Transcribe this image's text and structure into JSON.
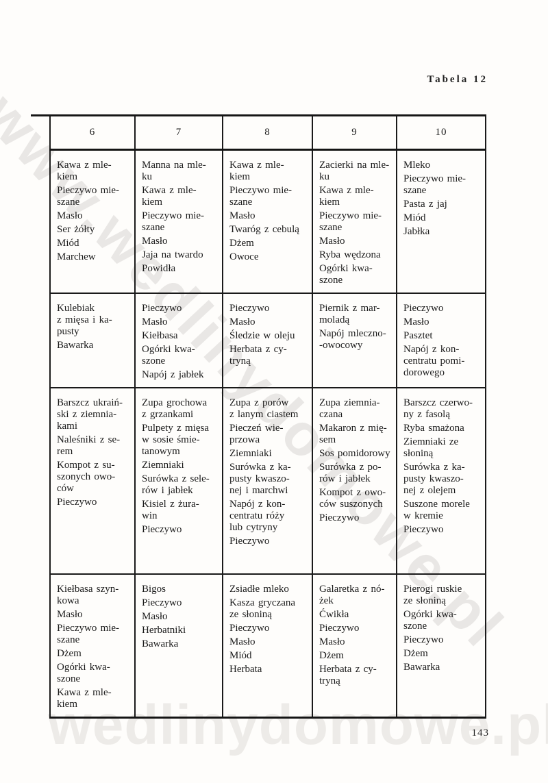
{
  "page": {
    "title": "Tabela 12",
    "number": "143"
  },
  "watermarks": {
    "diagonal": "www.wedlinydomowe.pl",
    "bottom": "wedlinydomowe.pl"
  },
  "table": {
    "headers": [
      "6",
      "7",
      "8",
      "9",
      "10"
    ],
    "rows": [
      [
        [
          "Kawa z mle-\nkiem",
          "Pieczywo mie-\nszane",
          "Masło",
          "Ser żółty",
          "Miód",
          "Marchew"
        ],
        [
          "Manna na mle-\nku",
          "Kawa z mle-\nkiem",
          "Pieczywo mie-\nszane",
          "Masło",
          "Jaja na twardo",
          "Powidła"
        ],
        [
          "Kawa z mle-\nkiem",
          "Pieczywo mie-\nszane",
          "Masło",
          "Twaróg z cebulą",
          "Dżem",
          "Owoce"
        ],
        [
          "Zacierki na mle-\nku",
          "Kawa z mle-\nkiem",
          "Pieczywo mie-\nszane",
          "Masło",
          "Ryba wędzona",
          "Ogórki kwa-\nszone"
        ],
        [
          "Mleko",
          "Pieczywo mie-\nszane",
          "Pasta z jaj",
          "Miód",
          "Jabłka"
        ]
      ],
      [
        [
          "Kulebiak\nz mięsa i ka-\npusty",
          "Bawarka"
        ],
        [
          "Pieczywo",
          "Masło",
          "Kiełbasa",
          "Ogórki kwa-\nszone",
          "Napój z jabłek"
        ],
        [
          "Pieczywo",
          "Masło",
          "Śledzie w oleju",
          "Herbata z cy-\ntryną"
        ],
        [
          "Piernik z mar-\nmoladą",
          "Napój mleczno-\n-owocowy"
        ],
        [
          "Pieczywo",
          "Masło",
          "Pasztet",
          "Napój z kon-\ncentratu pomi-\ndorowego"
        ]
      ],
      [
        [
          "Barszcz ukraiń-\nski z ziemnia-\nkami",
          "Naleśniki z se-\nrem",
          "Kompot z su-\nszonych owo-\nców",
          "Pieczywo"
        ],
        [
          "Zupa grochowa\nz grzankami",
          "Pulpety z mięsa\nw sosie śmie-\ntanowym",
          "Ziemniaki",
          "Surówka z sele-\nrów i jabłek",
          "Kisiel z żura-\nwin",
          "Pieczywo"
        ],
        [
          "Zupa z porów\nz lanym ciastem",
          "Pieczeń wie-\nprzowa",
          "Ziemniaki",
          "Surówka z ka-\npusty kwaszo-\nnej i marchwi",
          "Napój z kon-\ncentratu róży\nlub cytryny",
          "Pieczywo"
        ],
        [
          "Zupa ziemnia-\nczana",
          "Makaron z mię-\nsem",
          "Sos pomidorowy",
          "Surówka z po-\nrów i jabłek",
          "Kompot z owo-\nców suszonych",
          "Pieczywo"
        ],
        [
          "Barszcz czerwo-\nny z fasolą",
          "Ryba smażona",
          "Ziemniaki ze\nsłoniną",
          "Surówka z ka-\npusty kwaszo-\nnej z olejem",
          "Suszone morele\nw kremie",
          "Pieczywo"
        ]
      ],
      [
        [
          "Kiełbasa szyn-\nkowa",
          "Masło",
          "Pieczywo mie-\nszane",
          "Dżem",
          "Ogórki kwa-\nszone",
          "Kawa z mle-\nkiem"
        ],
        [
          "Bigos",
          "Pieczywo",
          "Masło",
          "Herbatniki",
          "Bawarka"
        ],
        [
          "Zsiadłe mleko",
          "Kasza gryczana\nze słoniną",
          "Pieczywo",
          "Masło",
          "Miód",
          "Herbata"
        ],
        [
          "Galaretka z nó-\nżek",
          "Ćwikła",
          "Pieczywo",
          "Masło",
          "Dżem",
          "Herbata z cy-\ntryną"
        ],
        [
          "Pierogi ruskie\nze słoniną",
          "Ogórki kwa-\nszone",
          "Pieczywo",
          "Dżem",
          "Bawarka"
        ]
      ]
    ]
  }
}
